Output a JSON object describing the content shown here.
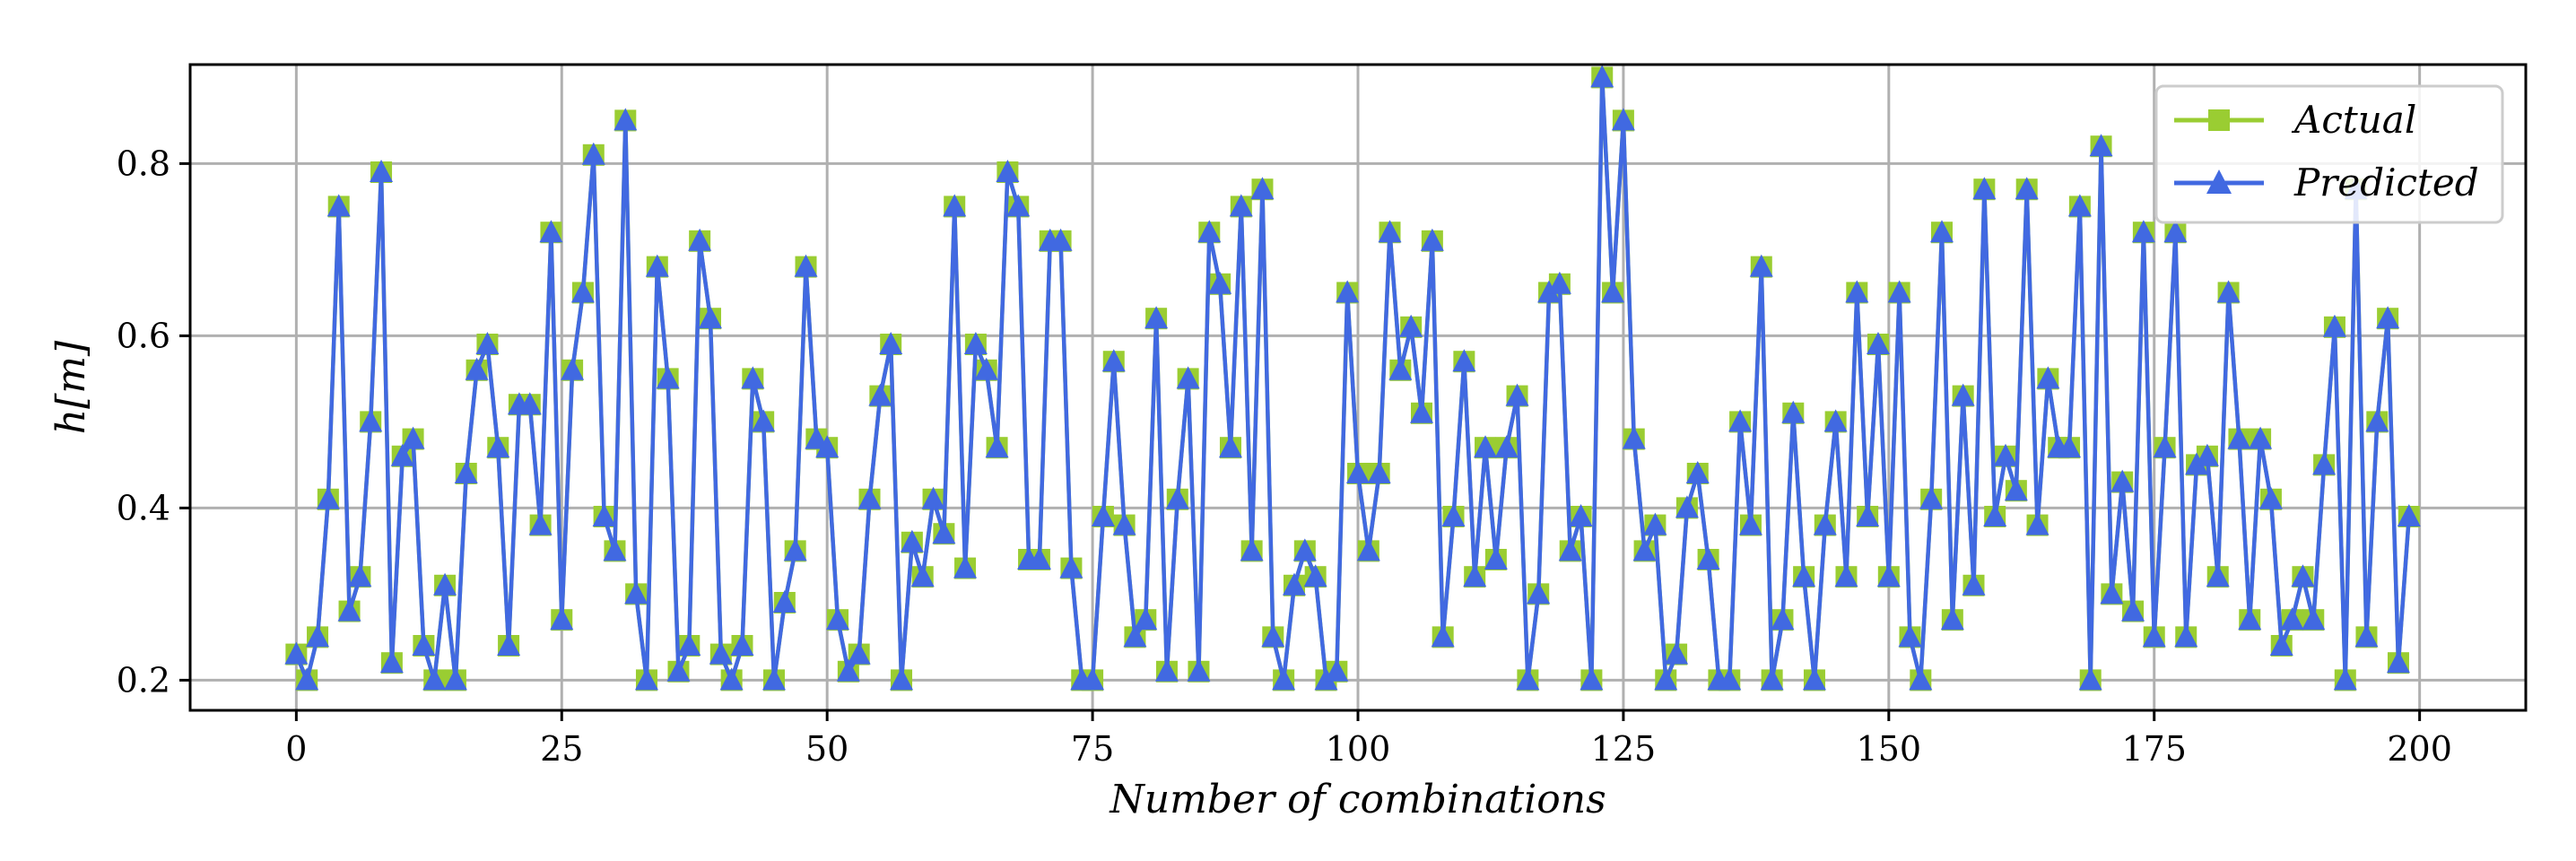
{
  "colors": {
    "actual": "#9acd32",
    "predicted": "#4169e1"
  },
  "chart_data": {
    "type": "line",
    "xlabel": "Number of combinations",
    "ylabel": "h[m]",
    "xlim": [
      -10,
      210
    ],
    "ylim": [
      0.165,
      0.915
    ],
    "xticks": [
      0,
      25,
      50,
      75,
      100,
      125,
      150,
      175,
      200
    ],
    "xtick_labels": [
      "0",
      "25",
      "50",
      "75",
      "100",
      "125",
      "150",
      "175",
      "200"
    ],
    "yticks": [
      0.2,
      0.4,
      0.6,
      0.8
    ],
    "ytick_labels": [
      "0.2",
      "0.4",
      "0.6",
      "0.8"
    ],
    "grid": true,
    "legend_position": "top-right",
    "x": [
      0,
      1,
      2,
      3,
      4,
      5,
      6,
      7,
      8,
      9,
      10,
      11,
      12,
      13,
      14,
      15,
      16,
      17,
      18,
      19,
      20,
      21,
      22,
      23,
      24,
      25,
      26,
      27,
      28,
      29,
      30,
      31,
      32,
      33,
      34,
      35,
      36,
      37,
      38,
      39,
      40,
      41,
      42,
      43,
      44,
      45,
      46,
      47,
      48,
      49,
      50,
      51,
      52,
      53,
      54,
      55,
      56,
      57,
      58,
      59,
      60,
      61,
      62,
      63,
      64,
      65,
      66,
      67,
      68,
      69,
      70,
      71,
      72,
      73,
      74,
      75,
      76,
      77,
      78,
      79,
      80,
      81,
      82,
      83,
      84,
      85,
      86,
      87,
      88,
      89,
      90,
      91,
      92,
      93,
      94,
      95,
      96,
      97,
      98,
      99,
      100,
      101,
      102,
      103,
      104,
      105,
      106,
      107,
      108,
      109,
      110,
      111,
      112,
      113,
      114,
      115,
      116,
      117,
      118,
      119,
      120,
      121,
      122,
      123,
      124,
      125,
      126,
      127,
      128,
      129,
      130,
      131,
      132,
      133,
      134,
      135,
      136,
      137,
      138,
      139,
      140,
      141,
      142,
      143,
      144,
      145,
      146,
      147,
      148,
      149,
      150,
      151,
      152,
      153,
      154,
      155,
      156,
      157,
      158,
      159,
      160,
      161,
      162,
      163,
      164,
      165,
      166,
      167,
      168,
      169,
      170,
      171,
      172,
      173,
      174,
      175,
      176,
      177,
      178,
      179,
      180,
      181,
      182,
      183,
      184,
      185,
      186,
      187,
      188,
      189,
      190,
      191,
      192,
      193,
      194,
      195,
      196,
      197,
      198,
      199
    ],
    "series": [
      {
        "name": "Actual",
        "marker": "square",
        "values": [
          0.23,
          0.2,
          0.25,
          0.41,
          0.75,
          0.28,
          0.32,
          0.5,
          0.79,
          0.22,
          0.46,
          0.48,
          0.24,
          0.2,
          0.31,
          0.2,
          0.44,
          0.56,
          0.59,
          0.47,
          0.24,
          0.52,
          0.52,
          0.38,
          0.72,
          0.27,
          0.56,
          0.65,
          0.81,
          0.39,
          0.35,
          0.85,
          0.3,
          0.2,
          0.68,
          0.55,
          0.21,
          0.24,
          0.71,
          0.62,
          0.23,
          0.2,
          0.24,
          0.55,
          0.5,
          0.2,
          0.29,
          0.35,
          0.68,
          0.48,
          0.47,
          0.27,
          0.21,
          0.23,
          0.41,
          0.53,
          0.59,
          0.2,
          0.36,
          0.32,
          0.41,
          0.37,
          0.75,
          0.33,
          0.59,
          0.56,
          0.47,
          0.79,
          0.75,
          0.34,
          0.34,
          0.71,
          0.71,
          0.33,
          0.2,
          0.2,
          0.39,
          0.57,
          0.38,
          0.25,
          0.27,
          0.62,
          0.21,
          0.41,
          0.55,
          0.21,
          0.72,
          0.66,
          0.47,
          0.75,
          0.35,
          0.77,
          0.25,
          0.2,
          0.31,
          0.35,
          0.32,
          0.2,
          0.21,
          0.65,
          0.44,
          0.35,
          0.44,
          0.72,
          0.56,
          0.61,
          0.51,
          0.71,
          0.25,
          0.39,
          0.57,
          0.32,
          0.47,
          0.34,
          0.47,
          0.53,
          0.2,
          0.3,
          0.65,
          0.66,
          0.35,
          0.39,
          0.2,
          0.9,
          0.65,
          0.85,
          0.48,
          0.35,
          0.38,
          0.2,
          0.23,
          0.4,
          0.44,
          0.34,
          0.2,
          0.2,
          0.5,
          0.38,
          0.68,
          0.2,
          0.27,
          0.51,
          0.32,
          0.2,
          0.38,
          0.5,
          0.32,
          0.65,
          0.39,
          0.59,
          0.32,
          0.65,
          0.25,
          0.2,
          0.41,
          0.72,
          0.27,
          0.53,
          0.31,
          0.77,
          0.39,
          0.46,
          0.42,
          0.77,
          0.38,
          0.55,
          0.47,
          0.47,
          0.75,
          0.2,
          0.82,
          0.3,
          0.43,
          0.28,
          0.72,
          0.25,
          0.47,
          0.72,
          0.25,
          0.45,
          0.46,
          0.32,
          0.65,
          0.48,
          0.27,
          0.48,
          0.41,
          0.24,
          0.27,
          0.32,
          0.27,
          0.45,
          0.61,
          0.2,
          0.77,
          0.25,
          0.5,
          0.62,
          0.22,
          0.39
        ]
      },
      {
        "name": "Predicted",
        "marker": "triangle",
        "values": [
          0.23,
          0.2,
          0.25,
          0.41,
          0.75,
          0.28,
          0.32,
          0.5,
          0.79,
          0.22,
          0.46,
          0.48,
          0.24,
          0.2,
          0.31,
          0.2,
          0.44,
          0.56,
          0.59,
          0.47,
          0.24,
          0.52,
          0.52,
          0.38,
          0.72,
          0.27,
          0.56,
          0.65,
          0.81,
          0.39,
          0.35,
          0.85,
          0.3,
          0.2,
          0.68,
          0.55,
          0.21,
          0.24,
          0.71,
          0.62,
          0.23,
          0.2,
          0.24,
          0.55,
          0.5,
          0.2,
          0.29,
          0.35,
          0.68,
          0.48,
          0.47,
          0.27,
          0.21,
          0.23,
          0.41,
          0.53,
          0.59,
          0.2,
          0.36,
          0.32,
          0.41,
          0.37,
          0.75,
          0.33,
          0.59,
          0.56,
          0.47,
          0.79,
          0.75,
          0.34,
          0.34,
          0.71,
          0.71,
          0.33,
          0.2,
          0.2,
          0.39,
          0.57,
          0.38,
          0.25,
          0.27,
          0.62,
          0.21,
          0.41,
          0.55,
          0.21,
          0.72,
          0.66,
          0.47,
          0.75,
          0.35,
          0.77,
          0.25,
          0.2,
          0.31,
          0.35,
          0.32,
          0.2,
          0.21,
          0.65,
          0.44,
          0.35,
          0.44,
          0.72,
          0.56,
          0.61,
          0.51,
          0.71,
          0.25,
          0.39,
          0.57,
          0.32,
          0.47,
          0.34,
          0.47,
          0.53,
          0.2,
          0.3,
          0.65,
          0.66,
          0.35,
          0.39,
          0.2,
          0.9,
          0.65,
          0.85,
          0.48,
          0.35,
          0.38,
          0.2,
          0.23,
          0.4,
          0.44,
          0.34,
          0.2,
          0.2,
          0.5,
          0.38,
          0.68,
          0.2,
          0.27,
          0.51,
          0.32,
          0.2,
          0.38,
          0.5,
          0.32,
          0.65,
          0.39,
          0.59,
          0.32,
          0.65,
          0.25,
          0.2,
          0.41,
          0.72,
          0.27,
          0.53,
          0.31,
          0.77,
          0.39,
          0.46,
          0.42,
          0.77,
          0.38,
          0.55,
          0.47,
          0.47,
          0.75,
          0.2,
          0.82,
          0.3,
          0.43,
          0.28,
          0.72,
          0.25,
          0.47,
          0.72,
          0.25,
          0.45,
          0.46,
          0.32,
          0.65,
          0.48,
          0.27,
          0.48,
          0.41,
          0.24,
          0.27,
          0.32,
          0.27,
          0.45,
          0.61,
          0.2,
          0.77,
          0.25,
          0.5,
          0.62,
          0.22,
          0.39
        ]
      }
    ]
  }
}
